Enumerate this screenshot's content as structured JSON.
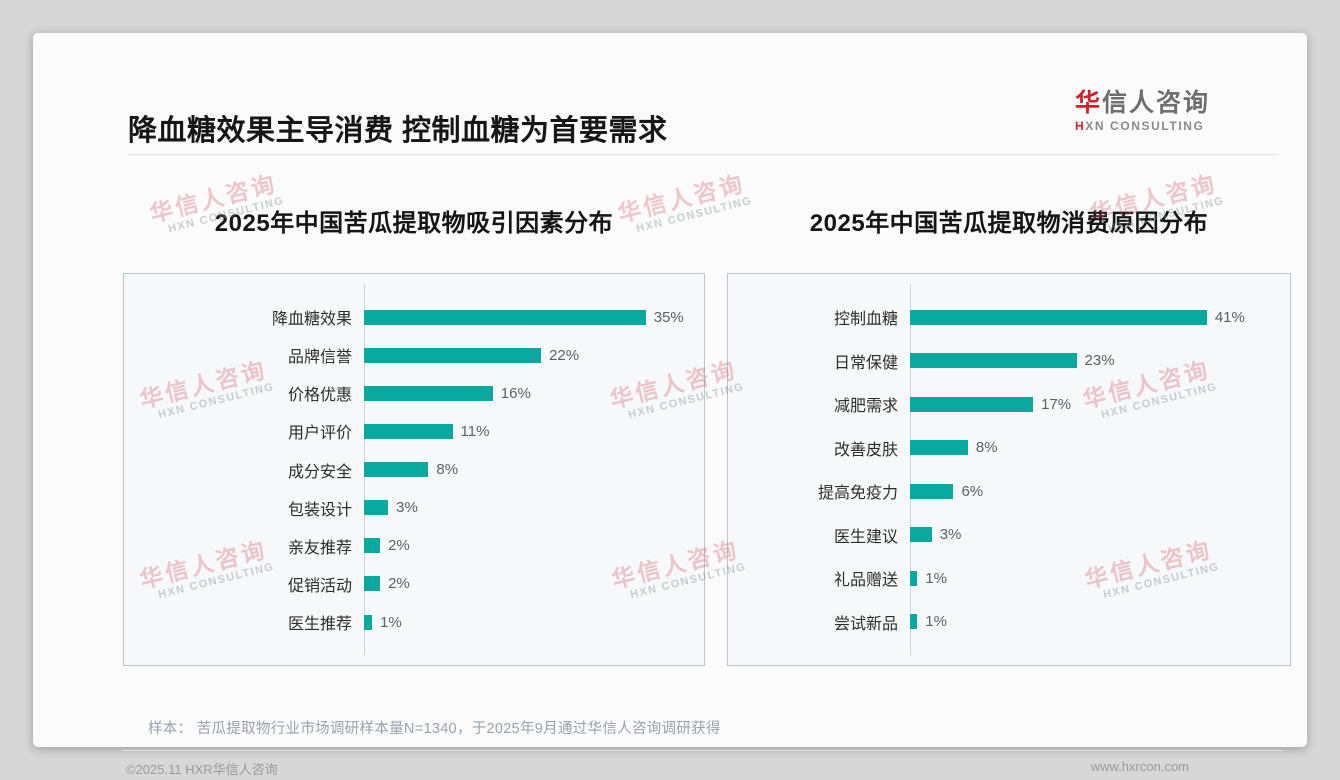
{
  "header": {
    "title": "降血糖效果主导消费 控制血糖为首要需求",
    "logo_cn_accent": "华",
    "logo_cn_rest": "信人咨询",
    "logo_en_accent": "H",
    "logo_en_rest": "XN CONSULTING"
  },
  "watermark": {
    "cn": "华信人咨询",
    "en": "HXN CONSULTING"
  },
  "colors": {
    "bar_teal": "#0aa9a0",
    "logo_red": "#c9252b"
  },
  "chart_data": [
    {
      "type": "bar",
      "orientation": "horizontal",
      "title": "2025年中国苦瓜提取物吸引因素分布",
      "categories": [
        "降血糖效果",
        "品牌信誉",
        "价格优惠",
        "用户评价",
        "成分安全",
        "包装设计",
        "亲友推荐",
        "促销活动",
        "医生推荐"
      ],
      "values": [
        35,
        22,
        16,
        11,
        8,
        3,
        2,
        2,
        1
      ],
      "unit": "%",
      "xlim": [
        0,
        40
      ],
      "bar_color": "#0aa9a0",
      "grid": false,
      "legend": "none"
    },
    {
      "type": "bar",
      "orientation": "horizontal",
      "title": "2025年中国苦瓜提取物消费原因分布",
      "categories": [
        "控制血糖",
        "日常保健",
        "减肥需求",
        "改善皮肤",
        "提高免疫力",
        "医生建议",
        "礼品赠送",
        "尝试新品"
      ],
      "values": [
        41,
        23,
        17,
        8,
        6,
        3,
        1,
        1
      ],
      "unit": "%",
      "xlim": [
        0,
        50
      ],
      "bar_color": "#0aa9a0",
      "grid": false,
      "legend": "none"
    }
  ],
  "footnote": "样本： 苦瓜提取物行业市场调研样本量N=1340，于2025年9月通过华信人咨询调研获得",
  "footer": {
    "copyright": "©2025.11 HXR华信人咨询",
    "website": "www.hxrcon.com"
  }
}
